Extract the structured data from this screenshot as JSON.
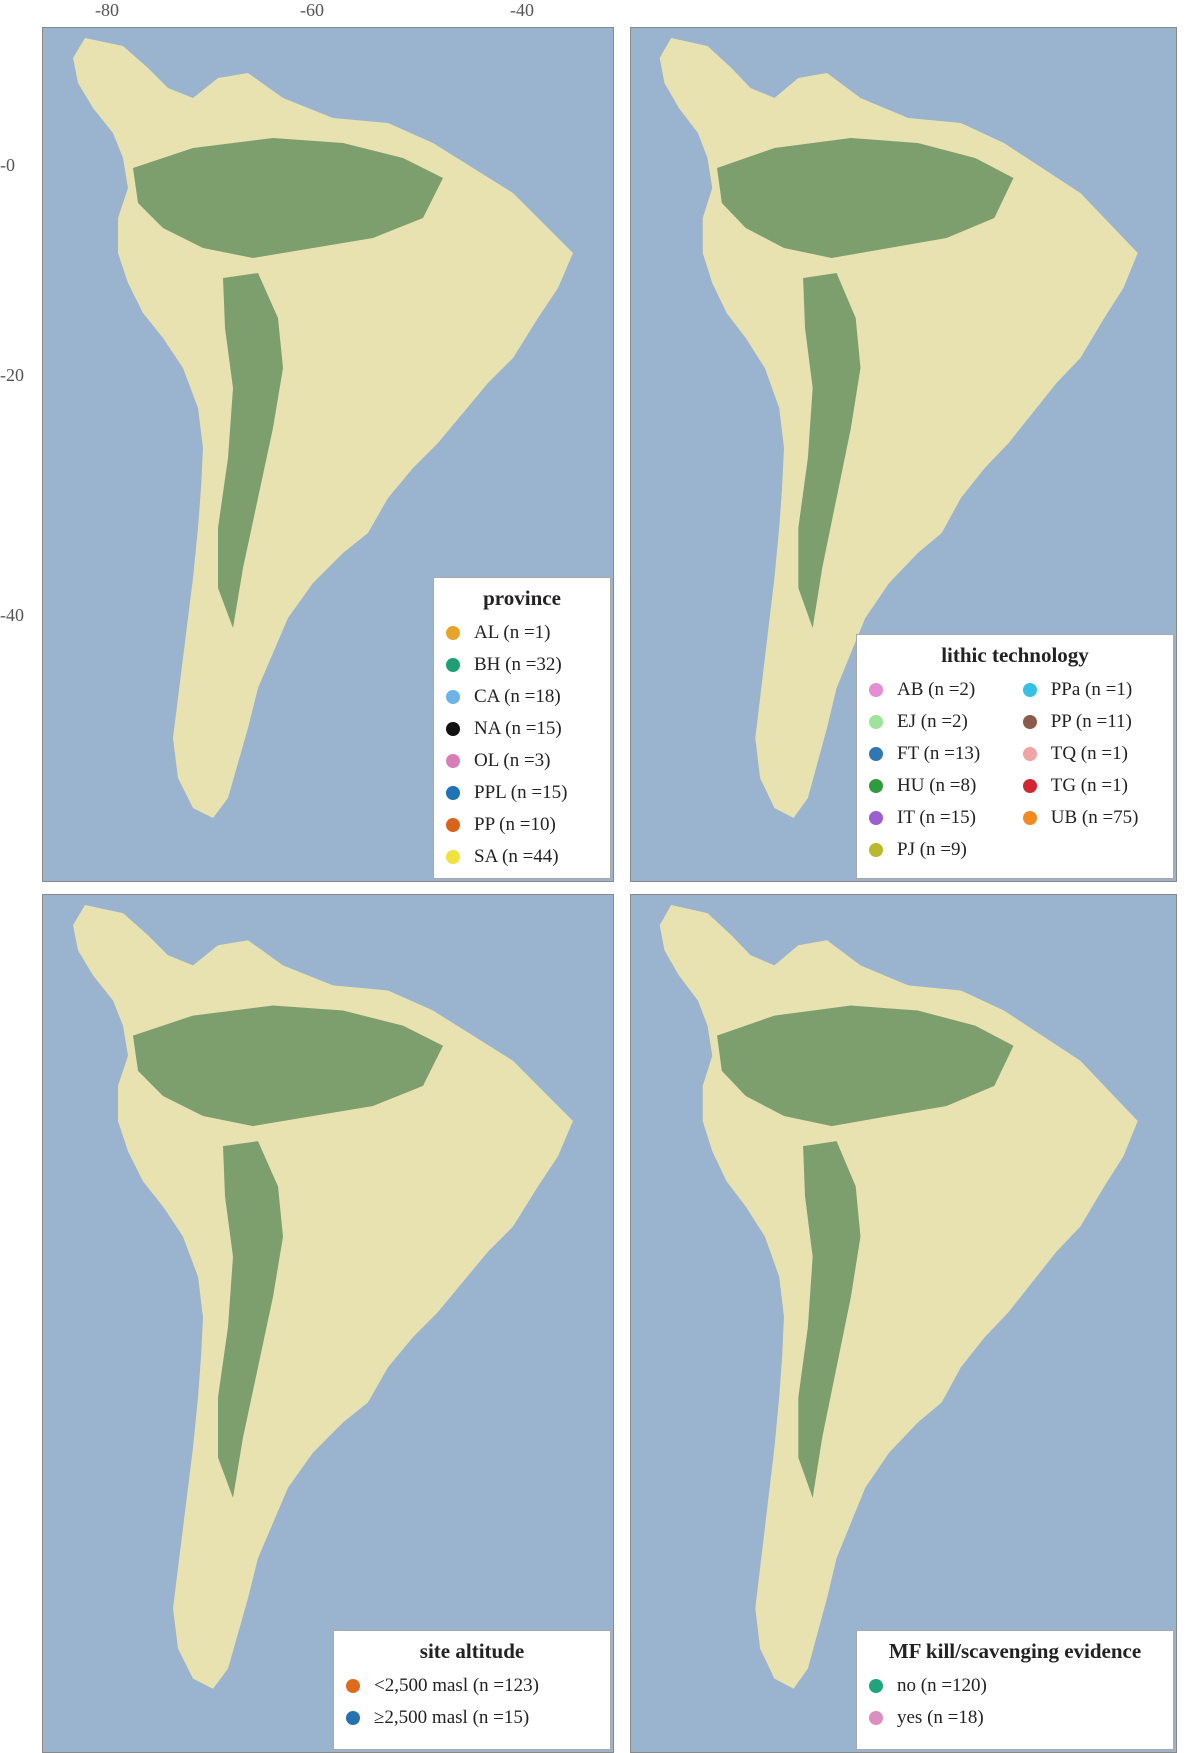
{
  "axes": {
    "x_ticks": [
      "-80",
      "-60",
      "-40"
    ],
    "y_ticks": [
      "-0",
      "-20",
      "-40"
    ]
  },
  "colors": {
    "ocean": "#9ab3cf",
    "land_light": "#e8e2b0",
    "land_forest": "#7d9f6e"
  },
  "panels": [
    {
      "legend_title": "province",
      "legend_columns": 1,
      "legend_items": [
        {
          "label": "AL (n =1)",
          "color": "#e6a52a"
        },
        {
          "label": "BH (n =32)",
          "color": "#1f9e74"
        },
        {
          "label": "CA (n =18)",
          "color": "#6cb4e8"
        },
        {
          "label": "NA (n =15)",
          "color": "#111111"
        },
        {
          "label": "OL (n =3)",
          "color": "#d77fb5"
        },
        {
          "label": "PPL (n =15)",
          "color": "#1f73b5"
        },
        {
          "label": "PP (n =10)",
          "color": "#d8641b"
        },
        {
          "label": "SA (n =44)",
          "color": "#f0e040"
        }
      ]
    },
    {
      "legend_title": "lithic technology",
      "legend_columns": 2,
      "legend_items": [
        {
          "label": "AB (n =2)",
          "color": "#e58fd2"
        },
        {
          "label": "EJ (n =2)",
          "color": "#9ee39a"
        },
        {
          "label": "FT (n =13)",
          "color": "#2e78b4"
        },
        {
          "label": "HU (n =8)",
          "color": "#2e9c3c"
        },
        {
          "label": "IT (n =15)",
          "color": "#9b5fd1"
        },
        {
          "label": "PJ (n =9)",
          "color": "#b8b92c"
        },
        {
          "label": "PPa (n =1)",
          "color": "#35c0e6"
        },
        {
          "label": "PP (n =11)",
          "color": "#8c5b4e"
        },
        {
          "label": "TQ (n =1)",
          "color": "#f2a3a3"
        },
        {
          "label": "TG (n =1)",
          "color": "#d02830"
        },
        {
          "label": "UB (n =75)",
          "color": "#f28a24"
        }
      ]
    },
    {
      "legend_title": "site altitude",
      "legend_columns": 1,
      "legend_items": [
        {
          "label": "<2,500 masl (n =123)",
          "color": "#de6a1c"
        },
        {
          "label": "≥2,500 masl (n =15)",
          "color": "#2472b2"
        }
      ]
    },
    {
      "legend_title": "MF kill/scavenging evidence",
      "legend_columns": 1,
      "legend_items": [
        {
          "label": "no (n =120)",
          "color": "#1fa57e"
        },
        {
          "label": "yes (n =18)",
          "color": "#dd8ec1"
        }
      ]
    }
  ]
}
